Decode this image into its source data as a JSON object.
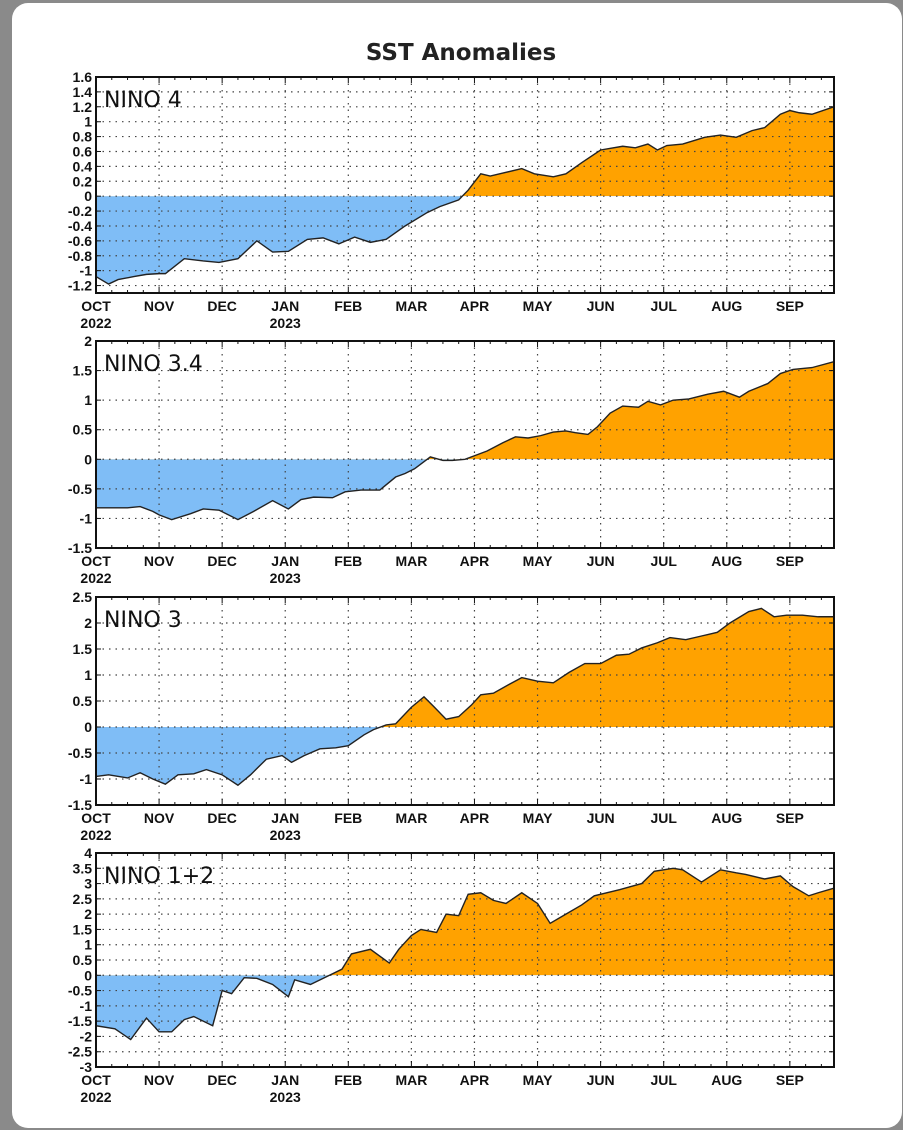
{
  "title": "SST Anomalies",
  "colors": {
    "positive": "#ffa200",
    "negative": "#7fbdf6",
    "line": "#222222"
  },
  "months": [
    "OCT",
    "NOV",
    "DEC",
    "JAN",
    "FEB",
    "MAR",
    "APR",
    "MAY",
    "JUN",
    "JUL",
    "AUG",
    "SEP"
  ],
  "years": [
    {
      "label": "2022",
      "month_index": 0
    },
    {
      "label": "2023",
      "month_index": 3
    }
  ],
  "chart_data": [
    {
      "type": "area",
      "name": "NINO 4",
      "ylim": [
        -1.3,
        1.6
      ],
      "yticks": [
        "1.6",
        "1.4",
        "1.2",
        "1",
        "0.8",
        "0.6",
        "0.4",
        "0.2",
        "0",
        "-0.2",
        "-0.4",
        "-0.6",
        "-0.8",
        "-1",
        "-1.2"
      ],
      "ytick_values": [
        1.6,
        1.4,
        1.2,
        1,
        0.8,
        0.6,
        0.4,
        0.2,
        0,
        -0.2,
        -0.4,
        -0.6,
        -0.8,
        -1,
        -1.2
      ],
      "x_months": [
        0,
        0.2,
        0.35,
        0.6,
        0.8,
        1.0,
        1.1,
        1.4,
        1.7,
        1.95,
        2.25,
        2.55,
        2.8,
        3.05,
        3.35,
        3.6,
        3.85,
        4.1,
        4.35,
        4.6,
        4.9,
        5.25,
        5.45,
        5.75,
        5.9,
        6.1,
        6.25,
        6.45,
        6.75,
        6.95,
        7.25,
        7.45,
        7.7,
        8.0,
        8.35,
        8.55,
        8.75,
        8.9,
        9.05,
        9.3,
        9.65,
        9.9,
        10.15,
        10.4,
        10.6,
        10.85,
        11.0,
        11.15,
        11.35,
        11.7
      ],
      "values": [
        -1.08,
        -1.18,
        -1.12,
        -1.08,
        -1.05,
        -1.04,
        -1.04,
        -0.84,
        -0.87,
        -0.89,
        -0.84,
        -0.6,
        -0.75,
        -0.74,
        -0.58,
        -0.56,
        -0.64,
        -0.55,
        -0.62,
        -0.58,
        -0.4,
        -0.22,
        -0.14,
        -0.05,
        0.08,
        0.3,
        0.27,
        0.31,
        0.37,
        0.3,
        0.26,
        0.3,
        0.45,
        0.62,
        0.67,
        0.65,
        0.7,
        0.62,
        0.68,
        0.7,
        0.79,
        0.82,
        0.79,
        0.88,
        0.92,
        1.1,
        1.15,
        1.12,
        1.1,
        1.2
      ]
    },
    {
      "type": "area",
      "name": "NINO 3.4",
      "ylim": [
        -1.5,
        2.0
      ],
      "yticks": [
        "2",
        "1.5",
        "1",
        "0.5",
        "0",
        "-0.5",
        "-1",
        "-1.5"
      ],
      "ytick_values": [
        2,
        1.5,
        1,
        0.5,
        0,
        -0.5,
        -1,
        -1.5
      ],
      "x_months": [
        0,
        0.25,
        0.5,
        0.7,
        0.9,
        1.0,
        1.2,
        1.5,
        1.7,
        1.95,
        2.25,
        2.5,
        2.8,
        3.05,
        3.25,
        3.45,
        3.75,
        3.95,
        4.2,
        4.5,
        4.75,
        4.9,
        5.05,
        5.3,
        5.5,
        5.65,
        5.85,
        6.0,
        6.2,
        6.45,
        6.65,
        6.85,
        7.05,
        7.25,
        7.45,
        7.6,
        7.8,
        7.95,
        8.15,
        8.35,
        8.6,
        8.75,
        8.95,
        9.15,
        9.4,
        9.7,
        9.95,
        10.2,
        10.35,
        10.65,
        10.85,
        11.05,
        11.35,
        11.7
      ],
      "values": [
        -0.82,
        -0.82,
        -0.82,
        -0.8,
        -0.88,
        -0.94,
        -1.02,
        -0.92,
        -0.84,
        -0.86,
        -1.02,
        -0.88,
        -0.7,
        -0.84,
        -0.68,
        -0.64,
        -0.65,
        -0.55,
        -0.52,
        -0.52,
        -0.3,
        -0.24,
        -0.16,
        0.04,
        -0.02,
        -0.02,
        0.0,
        0.06,
        0.14,
        0.28,
        0.38,
        0.36,
        0.4,
        0.46,
        0.48,
        0.45,
        0.42,
        0.55,
        0.78,
        0.9,
        0.88,
        0.98,
        0.92,
        1.0,
        1.02,
        1.1,
        1.15,
        1.05,
        1.15,
        1.28,
        1.45,
        1.52,
        1.55,
        1.65
      ]
    },
    {
      "type": "area",
      "name": "NINO 3",
      "ylim": [
        -1.5,
        2.5
      ],
      "yticks": [
        "2.5",
        "2",
        "1.5",
        "1",
        "0.5",
        "0",
        "-0.5",
        "-1",
        "-1.5"
      ],
      "ytick_values": [
        2.5,
        2,
        1.5,
        1,
        0.5,
        0,
        -0.5,
        -1,
        -1.5
      ],
      "x_months": [
        0,
        0.2,
        0.5,
        0.7,
        0.9,
        1.1,
        1.3,
        1.55,
        1.75,
        2.0,
        2.25,
        2.45,
        2.7,
        2.95,
        3.1,
        3.3,
        3.55,
        3.8,
        4.0,
        4.25,
        4.4,
        4.6,
        4.75,
        5.0,
        5.2,
        5.35,
        5.55,
        5.75,
        5.95,
        6.1,
        6.3,
        6.55,
        6.75,
        7.0,
        7.25,
        7.5,
        7.75,
        8.0,
        8.25,
        8.45,
        8.65,
        8.9,
        9.1,
        9.35,
        9.6,
        9.85,
        10.05,
        10.35,
        10.55,
        10.75,
        10.95,
        11.2,
        11.45,
        11.7
      ],
      "values": [
        -0.95,
        -0.92,
        -0.98,
        -0.88,
        -1.0,
        -1.1,
        -0.92,
        -0.9,
        -0.82,
        -0.92,
        -1.12,
        -0.92,
        -0.62,
        -0.55,
        -0.68,
        -0.55,
        -0.42,
        -0.4,
        -0.36,
        -0.15,
        -0.05,
        0.04,
        0.06,
        0.38,
        0.58,
        0.4,
        0.15,
        0.2,
        0.42,
        0.62,
        0.65,
        0.82,
        0.95,
        0.88,
        0.85,
        1.05,
        1.22,
        1.22,
        1.38,
        1.4,
        1.52,
        1.62,
        1.72,
        1.68,
        1.75,
        1.82,
        2.0,
        2.22,
        2.28,
        2.12,
        2.15,
        2.15,
        2.12,
        2.12
      ]
    },
    {
      "type": "area",
      "name": "NINO 1+2",
      "ylim": [
        -3.0,
        4.0
      ],
      "yticks": [
        "4",
        "3.5",
        "3",
        "2.5",
        "2",
        "1.5",
        "1",
        "0.5",
        "0",
        "-0.5",
        "-1",
        "-1.5",
        "-2",
        "-2.5",
        "-3"
      ],
      "ytick_values": [
        4,
        3.5,
        3,
        2.5,
        2,
        1.5,
        1,
        0.5,
        0,
        -0.5,
        -1,
        -1.5,
        -2,
        -2.5,
        -3
      ],
      "x_months": [
        0,
        0.3,
        0.55,
        0.8,
        1.0,
        1.2,
        1.4,
        1.55,
        1.85,
        2.0,
        2.15,
        2.35,
        2.55,
        2.8,
        3.05,
        3.15,
        3.4,
        3.6,
        3.9,
        4.05,
        4.35,
        4.65,
        4.8,
        5.0,
        5.15,
        5.4,
        5.55,
        5.75,
        5.9,
        6.1,
        6.3,
        6.5,
        6.75,
        7.0,
        7.2,
        7.45,
        7.7,
        7.9,
        8.3,
        8.65,
        8.85,
        9.15,
        9.3,
        9.6,
        9.9,
        10.15,
        10.3,
        10.6,
        10.85,
        11.05,
        11.3,
        11.45,
        11.7
      ],
      "values": [
        -1.65,
        -1.75,
        -2.1,
        -1.4,
        -1.85,
        -1.85,
        -1.45,
        -1.35,
        -1.65,
        -0.5,
        -0.6,
        -0.08,
        -0.1,
        -0.3,
        -0.7,
        -0.15,
        -0.3,
        -0.1,
        0.2,
        0.7,
        0.85,
        0.4,
        0.85,
        1.3,
        1.5,
        1.4,
        2.0,
        1.95,
        2.65,
        2.7,
        2.45,
        2.35,
        2.7,
        2.35,
        1.7,
        2.0,
        2.3,
        2.6,
        2.8,
        3.0,
        3.4,
        3.5,
        3.45,
        3.05,
        3.45,
        3.35,
        3.3,
        3.15,
        3.25,
        2.9,
        2.6,
        2.7,
        2.85
      ]
    }
  ]
}
